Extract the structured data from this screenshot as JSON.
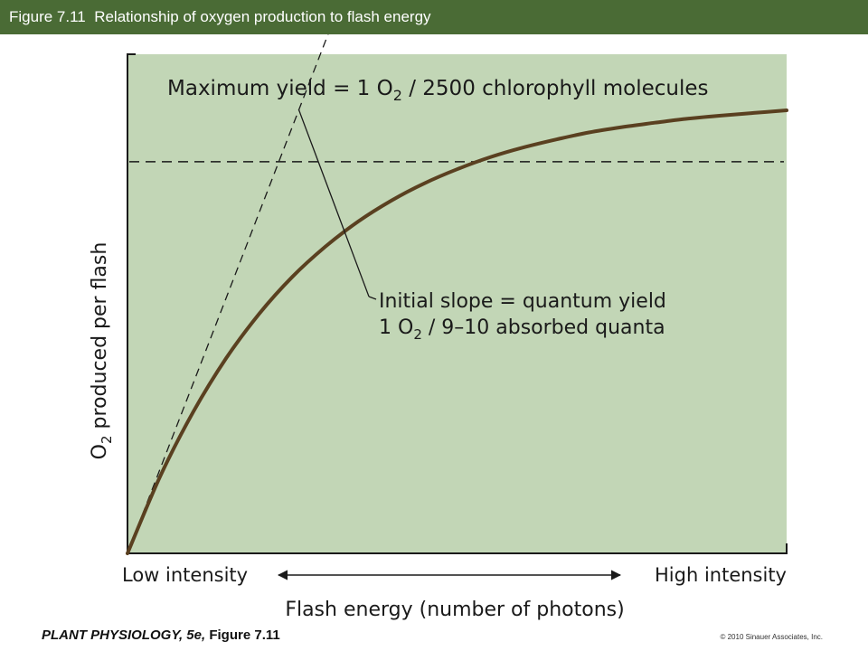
{
  "header": {
    "figure_number": "Figure 7.11",
    "title": "Relationship of oxygen production to flash energy"
  },
  "chart_data": {
    "type": "line",
    "title": "",
    "ylabel": {
      "prefix": "O",
      "subscript": "2",
      "rest": " produced per flash"
    },
    "xlabel": "Flash energy (number of photons)",
    "x_axis_low_label": "Low intensity",
    "x_axis_high_label": "High intensity",
    "xlim": [
      0,
      1
    ],
    "ylim": [
      0,
      1
    ],
    "grid": false,
    "background_color": "#c2d6b6",
    "series": [
      {
        "color": "#5a4020",
        "x": [
          0,
          0.05,
          0.1,
          0.15,
          0.2,
          0.25,
          0.3,
          0.35,
          0.4,
          0.45,
          0.5,
          0.55,
          0.6,
          0.65,
          0.7,
          0.75,
          0.8,
          0.85,
          0.9,
          0.95,
          1.0
        ],
        "y": [
          0,
          0.175,
          0.32,
          0.441,
          0.541,
          0.624,
          0.692,
          0.749,
          0.796,
          0.835,
          0.867,
          0.894,
          0.916,
          0.934,
          0.95,
          0.962,
          0.972,
          0.981,
          0.988,
          0.994,
          1.0
        ]
      }
    ],
    "annotations": {
      "max_yield": {
        "text_before": "Maximum yield = 1 O",
        "subscript": "2",
        "text_after": " / 2500 chlorophyll molecules",
        "y": 0.884
      },
      "initial_slope": {
        "line1": "Initial slope = quantum yield",
        "line2_before": "1 O",
        "line2_subscript": "2",
        "line2_after": " / 9–10 absorbed quanta",
        "tangent_slope": 3.85,
        "tangent_x_end": 0.305,
        "pointer_x": 0.26
      }
    }
  },
  "footer": {
    "book": "PLANT PHYSIOLOGY, 5e,",
    "figure": "Figure 7.11",
    "copyright": "© 2010 Sinauer Associates, Inc."
  }
}
